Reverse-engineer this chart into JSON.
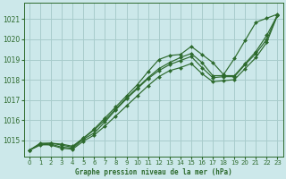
{
  "title": "Graphe pression niveau de la mer (hPa)",
  "bg_color": "#cce8ea",
  "grid_color": "#a8cccc",
  "line_color": "#2d6a2d",
  "marker_color": "#2d6a2d",
  "xlim": [
    -0.5,
    23.5
  ],
  "ylim": [
    1014.2,
    1021.8
  ],
  "yticks": [
    1015,
    1016,
    1017,
    1018,
    1019,
    1020,
    1021
  ],
  "xticks": [
    0,
    1,
    2,
    3,
    4,
    5,
    6,
    7,
    8,
    9,
    10,
    11,
    12,
    13,
    14,
    15,
    16,
    17,
    18,
    19,
    20,
    21,
    22,
    23
  ],
  "series": [
    [
      1014.5,
      1014.8,
      1014.85,
      1014.75,
      1014.65,
      1015.1,
      1015.5,
      1016.0,
      1016.55,
      1017.1,
      1017.6,
      1018.1,
      1018.55,
      1018.85,
      1019.1,
      1019.3,
      1018.85,
      1018.2,
      1018.2,
      1018.2,
      1018.8,
      1019.4,
      1020.2,
      1021.2
    ],
    [
      1014.5,
      1014.75,
      1014.8,
      1014.65,
      1014.6,
      1015.05,
      1015.35,
      1015.9,
      1016.5,
      1017.05,
      1017.55,
      1018.05,
      1018.45,
      1018.75,
      1018.95,
      1019.15,
      1018.6,
      1018.1,
      1018.15,
      1018.15,
      1018.75,
      1019.3,
      1020.0,
      1021.2
    ],
    [
      1014.5,
      1014.85,
      1014.85,
      1014.8,
      1014.7,
      1015.1,
      1015.55,
      1016.1,
      1016.65,
      1017.2,
      1017.75,
      1018.4,
      1019.0,
      1019.2,
      1019.25,
      1019.65,
      1019.25,
      1018.85,
      1018.25,
      1019.05,
      1019.95,
      1020.85,
      1021.05,
      1021.25
    ],
    [
      1014.5,
      1014.8,
      1014.75,
      1014.6,
      1014.55,
      1014.95,
      1015.25,
      1015.7,
      1016.2,
      1016.7,
      1017.2,
      1017.7,
      1018.15,
      1018.45,
      1018.6,
      1018.8,
      1018.3,
      1017.9,
      1017.95,
      1018.0,
      1018.55,
      1019.1,
      1019.85,
      1021.2
    ]
  ]
}
